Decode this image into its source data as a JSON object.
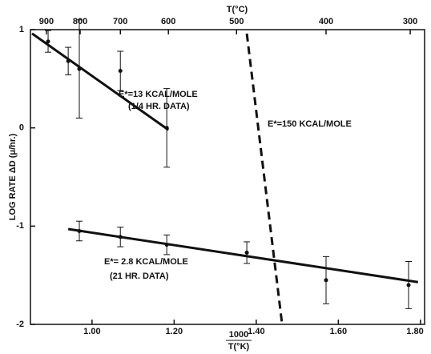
{
  "chart_data": {
    "type": "scatter",
    "x2label": "T(°C)",
    "ylabel": "LOG RATE ΔD (μ/hr.)",
    "xlabel": [
      "1000",
      "T(°K)"
    ],
    "xlim": [
      0.85,
      1.81
    ],
    "ylim": [
      -2,
      1
    ],
    "xticks": [
      {
        "value": 1.0,
        "label": "1.00"
      },
      {
        "value": 1.2,
        "label": "1.20"
      },
      {
        "value": 1.4,
        "label": "1.40"
      },
      {
        "value": 1.6,
        "label": "1.60"
      },
      {
        "value": 1.8,
        "label": "1.80"
      }
    ],
    "x2ticks": [
      {
        "value": 0.889,
        "label": "900"
      },
      {
        "value": 0.971,
        "label": "800"
      },
      {
        "value": 1.069,
        "label": "700"
      },
      {
        "value": 1.186,
        "label": "600"
      },
      {
        "value": 1.352,
        "label": "500"
      },
      {
        "value": 1.57,
        "label": "400"
      },
      {
        "value": 1.775,
        "label": "300"
      }
    ],
    "yticks": [
      1,
      0,
      -1,
      -2
    ],
    "color": "#111111",
    "series": [
      {
        "x": [
          0.893,
          0.942,
          0.969,
          1.069,
          1.182
        ],
        "values": [
          0.88,
          0.68,
          0.6,
          0.58,
          0.0
        ],
        "errors": [
          0.11,
          0.14,
          0.5,
          0.2,
          0.4
        ]
      },
      {
        "x": [
          0.969,
          1.069,
          1.182,
          1.377,
          1.57,
          1.771
        ],
        "values": [
          -1.05,
          -1.11,
          -1.19,
          -1.27,
          -1.55,
          -1.6
        ],
        "errors": [
          0.1,
          0.1,
          0.1,
          0.11,
          0.24,
          0.24
        ]
      }
    ],
    "fits": [
      {
        "x": [
          0.854,
          1.186
        ],
        "values": [
          0.96,
          -0.02
        ],
        "dashed": false
      },
      {
        "x": [
          0.942,
          1.794
        ],
        "values": [
          -1.03,
          -1.57
        ],
        "dashed": false
      },
      {
        "x": [
          1.377,
          1.463
        ],
        "values": [
          0.96,
          -2.0
        ],
        "dashed": true
      }
    ],
    "annotations": [
      "E*=13 KCAL/MOLE",
      "(1/4 HR. DATA)",
      "E*=150 KCAL/MOLE",
      "E*= 2.8 KCAL/MOLE",
      "(21 HR. DATA)"
    ]
  }
}
